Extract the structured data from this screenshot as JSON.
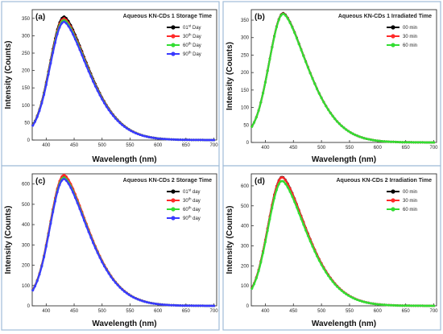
{
  "chart_data": [
    {
      "type": "line",
      "panel_label": "(a)",
      "title": "Aqueous KN-CDs 1 Storage Time",
      "xlabel": "Wavelength (nm)",
      "ylabel": "Intensity (Counts)",
      "xlim": [
        375,
        705
      ],
      "ylim": [
        0,
        375
      ],
      "xticks": [
        400,
        450,
        500,
        550,
        600,
        650,
        700
      ],
      "yticks": [
        0,
        50,
        100,
        150,
        200,
        250,
        300,
        350
      ],
      "peak_x": 432,
      "legend_position": "top-right",
      "series": [
        {
          "name": "01st Day",
          "color": "#000000",
          "peak": 355
        },
        {
          "name": "30th Day",
          "color": "#ff2a2a",
          "peak": 350
        },
        {
          "name": "60th Day",
          "color": "#33dd33",
          "peak": 345
        },
        {
          "name": "90th Day",
          "color": "#3a3aff",
          "peak": 340
        }
      ]
    },
    {
      "type": "line",
      "panel_label": "(b)",
      "title": "Aqueous KN-CDs 1 Irradiated Time",
      "xlabel": "Wavelength (nm)",
      "ylabel": "Intensity (Counts)",
      "xlim": [
        375,
        705
      ],
      "ylim": [
        0,
        380
      ],
      "xticks": [
        400,
        450,
        500,
        550,
        600,
        650,
        700
      ],
      "yticks": [
        0,
        50,
        100,
        150,
        200,
        250,
        300,
        350
      ],
      "peak_x": 432,
      "legend_position": "top-right",
      "series": [
        {
          "name": "00 min",
          "color": "#000000",
          "peak": 370
        },
        {
          "name": "30 min",
          "color": "#ff2a2a",
          "peak": 369
        },
        {
          "name": "60 min",
          "color": "#33dd33",
          "peak": 368
        }
      ]
    },
    {
      "type": "line",
      "panel_label": "(c)",
      "title": "Aqueous KN-CDs 2 Storage Time",
      "xlabel": "Wavelength (nm)",
      "ylabel": "Intensity (Counts)",
      "xlim": [
        375,
        705
      ],
      "ylim": [
        0,
        650
      ],
      "xticks": [
        400,
        450,
        500,
        550,
        600,
        650,
        700
      ],
      "yticks": [
        0,
        100,
        200,
        300,
        400,
        500,
        600
      ],
      "peak_x": 432,
      "legend_position": "top-right",
      "series": [
        {
          "name": "01st day",
          "color": "#000000",
          "peak": 640
        },
        {
          "name": "30th day",
          "color": "#ff2a2a",
          "peak": 645
        },
        {
          "name": "60th day",
          "color": "#33dd33",
          "peak": 632
        },
        {
          "name": "90th day",
          "color": "#3a3aff",
          "peak": 625
        }
      ]
    },
    {
      "type": "line",
      "panel_label": "(d)",
      "title": "Aqueous KN-CDs 2 Irradiation Time",
      "xlabel": "Wavelength (nm)",
      "ylabel": "Intensity (Counts)",
      "xlim": [
        375,
        705
      ],
      "ylim": [
        0,
        660
      ],
      "xticks": [
        400,
        450,
        500,
        550,
        600,
        650,
        700
      ],
      "yticks": [
        0,
        100,
        200,
        300,
        400,
        500,
        600
      ],
      "peak_x": 430,
      "legend_position": "top-right",
      "series": [
        {
          "name": "00 min",
          "color": "#000000",
          "peak": 645
        },
        {
          "name": "30 min",
          "color": "#ff2a2a",
          "peak": 643
        },
        {
          "name": "60 min",
          "color": "#33dd33",
          "peak": 625
        }
      ]
    }
  ]
}
